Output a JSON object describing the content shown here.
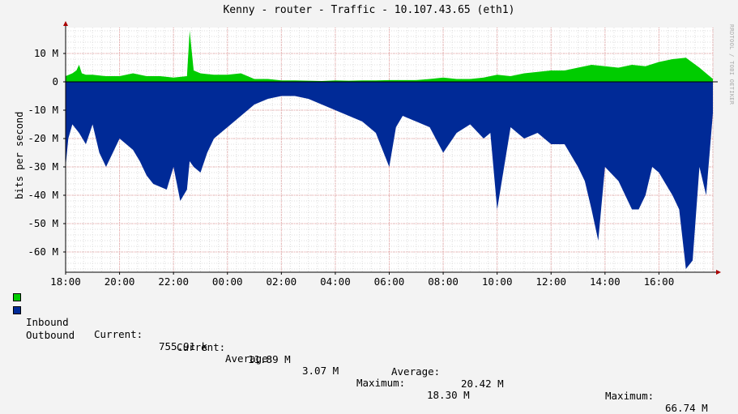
{
  "title": "Kenny - router - Traffic - 10.107.43.65 (eth1)",
  "side_label": "RRDTOOL / TOBI OETIKER",
  "colors": {
    "background": "#f3f3f3",
    "plot_bg": "#ffffff",
    "inbound": "#00cc00",
    "outbound": "#002a97",
    "grid_major": "#e6a0a0",
    "grid_minor": "#dddddd",
    "axis": "#000000",
    "arrow": "#aa0000"
  },
  "chart_data": {
    "type": "area",
    "ylabel": "bits per second",
    "ylim": [
      -66,
      18
    ],
    "y_ticks": [
      {
        "value": 10,
        "label": "10 M"
      },
      {
        "value": 0,
        "label": "0"
      },
      {
        "value": -10,
        "label": "-10 M"
      },
      {
        "value": -20,
        "label": "-20 M"
      },
      {
        "value": -30,
        "label": "-30 M"
      },
      {
        "value": -40,
        "label": "-40 M"
      },
      {
        "value": -50,
        "label": "-50 M"
      },
      {
        "value": -60,
        "label": "-60 M"
      }
    ],
    "x_ticks": [
      "18:00",
      "20:00",
      "22:00",
      "00:00",
      "02:00",
      "04:00",
      "06:00",
      "08:00",
      "10:00",
      "12:00",
      "14:00",
      "16:00"
    ],
    "x_hours_start": 0,
    "x_hours_end": 24,
    "grid": true,
    "series": [
      {
        "name": "Inbound",
        "color": "#00cc00",
        "x_hours": [
          0,
          0.25,
          0.4,
          0.5,
          0.6,
          0.75,
          1.0,
          1.5,
          2.0,
          2.5,
          3.0,
          3.5,
          4.0,
          4.5,
          4.6,
          4.75,
          5.0,
          5.5,
          6.0,
          6.5,
          7.0,
          7.5,
          8.0,
          8.5,
          9.0,
          9.5,
          10.0,
          10.5,
          11.0,
          11.5,
          12.0,
          12.5,
          13.0,
          13.5,
          14.0,
          14.5,
          15.0,
          15.5,
          16.0,
          16.5,
          17.0,
          17.5,
          18.0,
          18.5,
          19.0,
          19.5,
          20.0,
          20.5,
          21.0,
          21.5,
          22.0,
          22.5,
          23.0,
          23.5,
          24.0
        ],
        "values": [
          2,
          3,
          4,
          6,
          3,
          2.5,
          2.5,
          2,
          2,
          3,
          2,
          2,
          1.5,
          2,
          18,
          4,
          3,
          2.5,
          2.5,
          3,
          1,
          1,
          0.5,
          0.5,
          0.4,
          0.3,
          0.5,
          0.4,
          0.5,
          0.5,
          0.6,
          0.6,
          0.6,
          1,
          1.5,
          1,
          1,
          1.5,
          2.5,
          2,
          3,
          3.5,
          4,
          4,
          5,
          6,
          5.5,
          5,
          6,
          5.5,
          7,
          8,
          8.5,
          5,
          1
        ]
      },
      {
        "name": "Outbound",
        "color": "#002a97",
        "x_hours": [
          0,
          0.1,
          0.25,
          0.5,
          0.75,
          1.0,
          1.25,
          1.5,
          1.75,
          2.0,
          2.25,
          2.5,
          2.75,
          3.0,
          3.25,
          3.5,
          3.75,
          4.0,
          4.25,
          4.5,
          4.6,
          4.75,
          5.0,
          5.25,
          5.5,
          5.75,
          6.0,
          6.25,
          6.5,
          6.75,
          7.0,
          7.5,
          8.0,
          8.5,
          9.0,
          9.5,
          10.0,
          10.5,
          11.0,
          11.5,
          12.0,
          12.25,
          12.5,
          13.0,
          13.5,
          14.0,
          14.5,
          15.0,
          15.5,
          15.75,
          16.0,
          16.5,
          17.0,
          17.5,
          18.0,
          18.5,
          19.0,
          19.25,
          19.5,
          19.75,
          20.0,
          20.5,
          21.0,
          21.25,
          21.5,
          21.75,
          22.0,
          22.25,
          22.5,
          22.75,
          23.0,
          23.25,
          23.5,
          23.75,
          24.0
        ],
        "values": [
          -30,
          -20,
          -15,
          -18,
          -22,
          -15,
          -25,
          -30,
          -25,
          -20,
          -22,
          -24,
          -28,
          -33,
          -36,
          -37,
          -38,
          -30,
          -42,
          -38,
          -28,
          -30,
          -32,
          -25,
          -20,
          -18,
          -16,
          -14,
          -12,
          -10,
          -8,
          -6,
          -5,
          -5,
          -6,
          -8,
          -10,
          -12,
          -14,
          -18,
          -30,
          -16,
          -12,
          -14,
          -16,
          -25,
          -18,
          -15,
          -20,
          -18,
          -45,
          -16,
          -20,
          -18,
          -22,
          -22,
          -30,
          -35,
          -45,
          -56,
          -30,
          -35,
          -45,
          -45,
          -40,
          -30,
          -32,
          -36,
          -40,
          -45,
          -66,
          -63,
          -30,
          -40,
          -11
        ]
      }
    ]
  },
  "legend": [
    {
      "name": "Inbound",
      "color": "#00cc00",
      "current_label": "Current:",
      "current": "755.91 k",
      "average_label": "Average:",
      "average": "3.07 M",
      "maximum_label": "Maximum:",
      "maximum": "18.30 M"
    },
    {
      "name": "Outbound",
      "color": "#002a97",
      "current_label": "Current:",
      "current": "11.89 M",
      "average_label": "Average:",
      "average": "20.42 M",
      "maximum_label": "Maximum:",
      "maximum": "66.74 M"
    }
  ]
}
